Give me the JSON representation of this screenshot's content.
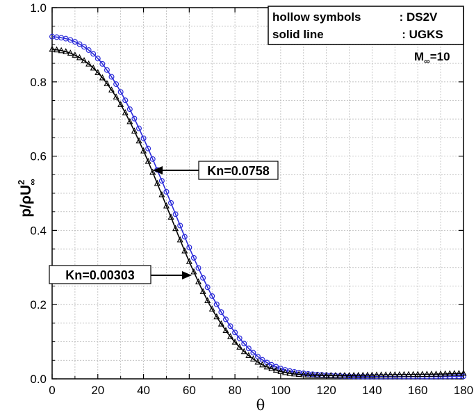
{
  "chart_data": {
    "type": "line",
    "xlabel": "θ",
    "ylabel": {
      "base": "p/ρU",
      "sup": "2",
      "sub": "∞"
    },
    "xlim": [
      0,
      180
    ],
    "ylim": [
      0,
      1.0
    ],
    "xticks": [
      "0",
      "20",
      "40",
      "60",
      "80",
      "100",
      "120",
      "140",
      "160",
      "180"
    ],
    "yticks": [
      "0.0",
      "0.2",
      "0.4",
      "0.6",
      "0.8",
      "1.0"
    ],
    "grid": true,
    "colors": {
      "kn_0758": "#2b2bd9",
      "kn_00303": "#000000"
    },
    "legend": {
      "line1_left": "hollow symbols",
      "line1_right": ": DS2V",
      "line2_left": "solid line",
      "line2_right": ": UGKS",
      "mach": {
        "base": "M",
        "sub": "∞",
        "suffix": "=10"
      }
    },
    "annotations": [
      {
        "text": "Kn=0.0758",
        "series": 0
      },
      {
        "text": "Kn=0.00303",
        "series": 1
      }
    ],
    "series": [
      {
        "name": "Kn=0.0758",
        "color": "#2b2bd9",
        "x": [
          0,
          10,
          20,
          30,
          40,
          50,
          60,
          70,
          80,
          90,
          100,
          110,
          120,
          130,
          140,
          150,
          160,
          170,
          180
        ],
        "y": [
          0.922,
          0.908,
          0.863,
          0.773,
          0.648,
          0.504,
          0.354,
          0.223,
          0.125,
          0.06,
          0.028,
          0.015,
          0.01,
          0.007,
          0.006,
          0.006,
          0.006,
          0.006,
          0.007
        ]
      },
      {
        "name": "Kn=0.00303",
        "color": "#000000",
        "x": [
          0,
          10,
          20,
          30,
          40,
          50,
          60,
          70,
          80,
          90,
          100,
          110,
          120,
          130,
          140,
          150,
          160,
          170,
          180
        ],
        "y": [
          0.888,
          0.872,
          0.825,
          0.739,
          0.614,
          0.466,
          0.316,
          0.188,
          0.099,
          0.045,
          0.02,
          0.011,
          0.009,
          0.009,
          0.01,
          0.011,
          0.012,
          0.013,
          0.015
        ]
      }
    ]
  }
}
